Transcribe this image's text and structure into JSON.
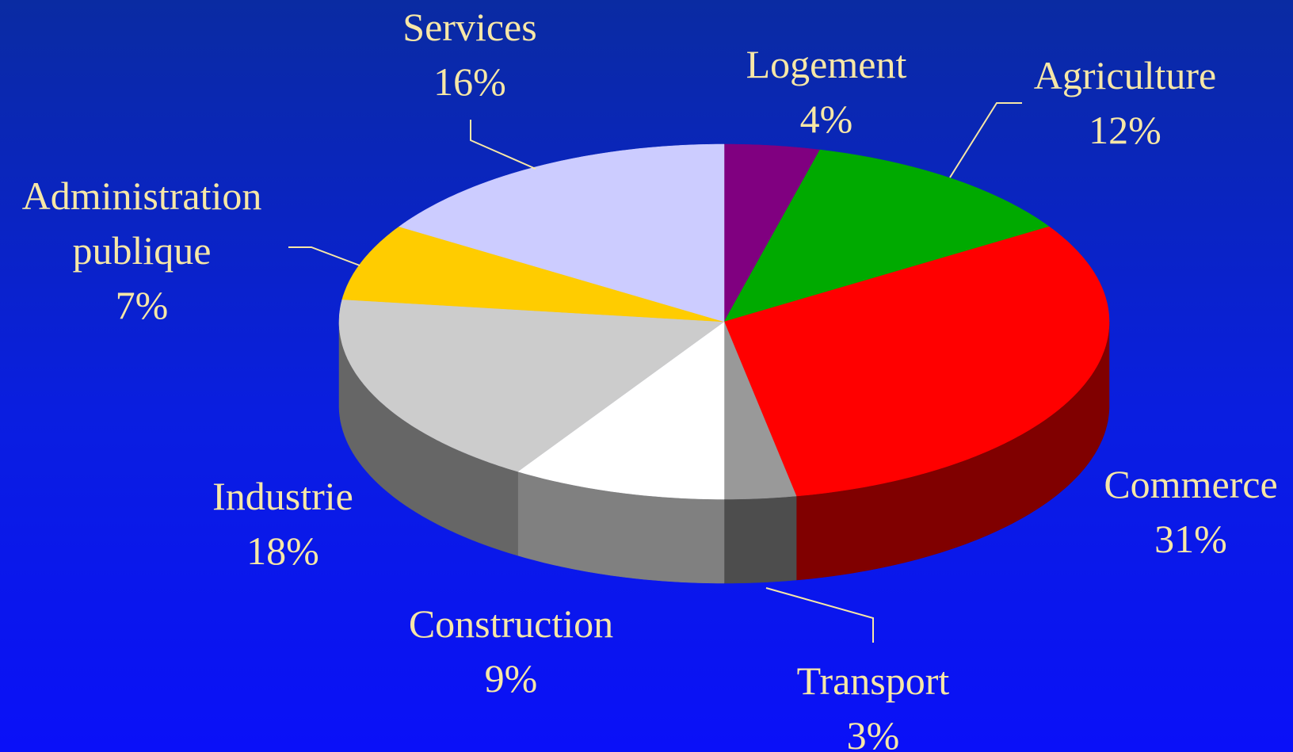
{
  "chart_data": {
    "type": "pie",
    "categories": [
      "Logement",
      "Agriculture",
      "Commerce",
      "Transport",
      "Construction",
      "Industrie",
      "Administration publique",
      "Services"
    ],
    "values": [
      4,
      12,
      31,
      3,
      9,
      18,
      7,
      16
    ],
    "value_labels": [
      "4%",
      "12%",
      "31%",
      "3%",
      "9%",
      "18%",
      "7%",
      "16%"
    ],
    "colors": [
      "#800080",
      "#00aa00",
      "#ff0000",
      "#999999",
      "#ffffff",
      "#cccccc",
      "#ffcc00",
      "#ccccff"
    ]
  }
}
